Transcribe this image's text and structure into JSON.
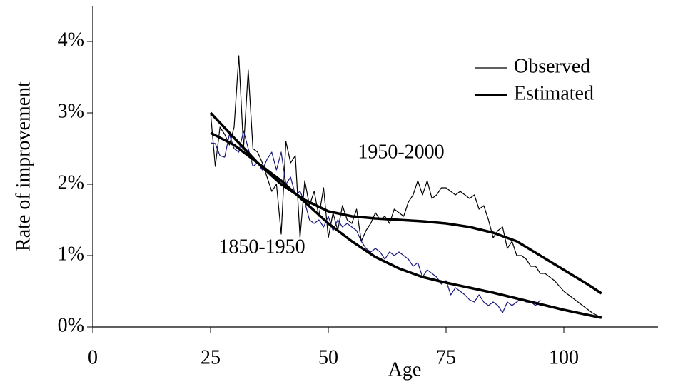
{
  "chart_data": {
    "type": "line",
    "ylabel": "Rate of improvement",
    "xlabel": "Age",
    "xlim": [
      0,
      120
    ],
    "xticks": [
      0,
      25,
      50,
      75,
      100
    ],
    "ylim": [
      0,
      4.5
    ],
    "yticks": [
      {
        "value": 0,
        "label": "0%"
      },
      {
        "value": 1,
        "label": "1%"
      },
      {
        "value": 2,
        "label": "2%"
      },
      {
        "value": 3,
        "label": "3%"
      },
      {
        "value": 4,
        "label": "4%"
      }
    ],
    "grid": false,
    "legend_position": "upper right",
    "annotations": [
      "1950-2000",
      "1850-1950"
    ],
    "series": [
      {
        "name": "Observed",
        "color": "#000000",
        "line_width": 1.2,
        "x": [
          25,
          26,
          27,
          28,
          29,
          30,
          31,
          32,
          33,
          34,
          35,
          36,
          37,
          38,
          39,
          40,
          41,
          42,
          43,
          44,
          45,
          46,
          47,
          48,
          49,
          50,
          51,
          52,
          53,
          54,
          55,
          56,
          57,
          58,
          59,
          60,
          61,
          62,
          63,
          64,
          65,
          66,
          67,
          68,
          69,
          70,
          71,
          72,
          73,
          74,
          75,
          76,
          77,
          78,
          79,
          80,
          81,
          82,
          83,
          84,
          85,
          86,
          87,
          88,
          89,
          90,
          91,
          92,
          93,
          94,
          95,
          96,
          98,
          100,
          102,
          104,
          106,
          108
        ],
        "values": [
          3.0,
          2.25,
          2.8,
          2.7,
          2.55,
          2.8,
          3.8,
          2.5,
          3.6,
          2.5,
          2.45,
          2.3,
          2.1,
          1.9,
          2.0,
          1.3,
          2.6,
          2.3,
          2.4,
          1.25,
          2.05,
          1.7,
          1.9,
          1.55,
          1.95,
          1.25,
          1.6,
          1.35,
          1.7,
          1.5,
          1.45,
          1.65,
          1.2,
          1.35,
          1.45,
          1.6,
          1.5,
          1.55,
          1.45,
          1.65,
          1.6,
          1.55,
          1.75,
          1.85,
          2.05,
          1.85,
          2.05,
          1.8,
          1.85,
          1.95,
          1.95,
          1.9,
          1.85,
          1.9,
          1.85,
          1.8,
          1.85,
          1.65,
          1.7,
          1.5,
          1.25,
          1.35,
          1.4,
          1.1,
          1.2,
          1.0,
          1.0,
          0.95,
          0.85,
          0.85,
          0.75,
          0.75,
          0.65,
          0.5,
          0.4,
          0.3,
          0.2,
          0.13
        ]
      },
      {
        "name": "Observed",
        "color": "#1a1a80",
        "line_width": 1.2,
        "x": [
          25,
          26,
          27,
          28,
          29,
          30,
          31,
          32,
          33,
          34,
          35,
          36,
          37,
          38,
          39,
          40,
          41,
          42,
          43,
          44,
          45,
          46,
          47,
          48,
          49,
          50,
          51,
          52,
          53,
          54,
          55,
          56,
          57,
          58,
          59,
          60,
          61,
          62,
          63,
          64,
          65,
          66,
          67,
          68,
          69,
          70,
          71,
          72,
          73,
          74,
          75,
          76,
          77,
          78,
          79,
          80,
          81,
          82,
          83,
          84,
          85,
          86,
          87,
          88,
          89,
          90,
          91,
          92,
          93,
          94,
          95
        ],
        "values": [
          2.58,
          2.57,
          2.4,
          2.38,
          2.7,
          2.5,
          2.45,
          2.75,
          2.5,
          2.25,
          2.3,
          2.2,
          2.35,
          2.45,
          2.2,
          2.45,
          2.0,
          2.1,
          1.85,
          1.9,
          1.75,
          1.5,
          1.45,
          1.5,
          1.4,
          1.55,
          1.35,
          1.5,
          1.4,
          1.45,
          1.4,
          1.35,
          1.2,
          1.1,
          1.05,
          1.1,
          1.05,
          0.95,
          1.05,
          1.0,
          1.05,
          1.0,
          0.95,
          0.85,
          0.9,
          0.7,
          0.8,
          0.75,
          0.7,
          0.6,
          0.65,
          0.45,
          0.55,
          0.5,
          0.45,
          0.38,
          0.35,
          0.45,
          0.35,
          0.3,
          0.35,
          0.3,
          0.2,
          0.35,
          0.3,
          0.35,
          0.4,
          0.35,
          0.35,
          0.3,
          0.38
        ]
      },
      {
        "name": "Estimated",
        "color": "#000000",
        "line_width": 3.5,
        "x": [
          25,
          30,
          35,
          40,
          45,
          50,
          55,
          60,
          65,
          70,
          75,
          80,
          85,
          90,
          95,
          100,
          105,
          108
        ],
        "values": [
          3.0,
          2.65,
          2.3,
          2.0,
          1.78,
          1.62,
          1.55,
          1.52,
          1.5,
          1.48,
          1.45,
          1.4,
          1.32,
          1.2,
          1.0,
          0.8,
          0.6,
          0.47
        ]
      },
      {
        "name": "Estimated",
        "color": "#000000",
        "line_width": 3.5,
        "x": [
          25,
          30,
          35,
          40,
          45,
          50,
          55,
          60,
          65,
          70,
          75,
          80,
          85,
          90,
          95,
          100,
          105,
          108
        ],
        "values": [
          2.72,
          2.55,
          2.3,
          2.05,
          1.75,
          1.45,
          1.2,
          0.98,
          0.82,
          0.7,
          0.62,
          0.55,
          0.48,
          0.4,
          0.32,
          0.24,
          0.17,
          0.13
        ]
      }
    ]
  }
}
